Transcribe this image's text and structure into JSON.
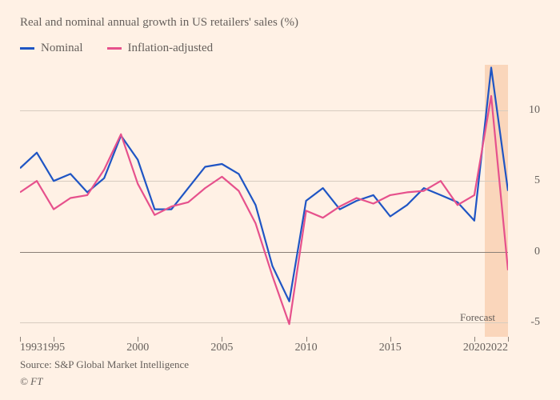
{
  "subtitle": "Real and nominal annual growth in US retailers' sales (%)",
  "source_line": "Source: S&P Global Market Intelligence",
  "copyright_line": "© FT",
  "forecast_label": "Forecast",
  "background_color": "#fff1e5",
  "text_color": "#66605c",
  "grid_color": "#d7ccc0",
  "axis_color": "#8a7f76",
  "subtitle_fontsize": 15,
  "legend_fontsize": 15,
  "axis_fontsize": 14,
  "footer_fontsize": 13,
  "legend": [
    {
      "label": "Nominal",
      "color": "#1f55c4"
    },
    {
      "label": "Inflation-adjusted",
      "color": "#e6518c"
    }
  ],
  "chart": {
    "type": "line",
    "x_years": [
      1993,
      1994,
      1995,
      1996,
      1997,
      1998,
      1999,
      2000,
      2001,
      2002,
      2003,
      2004,
      2005,
      2006,
      2007,
      2008,
      2009,
      2010,
      2011,
      2012,
      2013,
      2014,
      2015,
      2016,
      2017,
      2018,
      2019,
      2020,
      2021,
      2022
    ],
    "x_ticks": [
      1993,
      1995,
      2000,
      2005,
      2010,
      2015,
      2020,
      2022
    ],
    "y_ticks": [
      -5,
      0,
      5,
      10
    ],
    "xlim": [
      1993,
      2022
    ],
    "ylim": [
      -6.0,
      13.2
    ],
    "line_width": 2.2,
    "forecast_start": 2020.6,
    "forecast_end": 2022,
    "forecast_fill": "rgba(247,197,159,0.6)",
    "series": [
      {
        "key": "nominal",
        "color": "#1f55c4",
        "values": [
          5.9,
          7.0,
          5.0,
          5.5,
          4.2,
          5.2,
          8.2,
          6.5,
          3.0,
          3.0,
          4.5,
          6.0,
          6.2,
          5.5,
          3.3,
          -1.0,
          -3.5,
          3.6,
          4.5,
          3.0,
          3.6,
          4.0,
          2.5,
          3.3,
          4.5,
          4.0,
          3.5,
          2.2,
          13.0,
          4.3
        ]
      },
      {
        "key": "inflation_adjusted",
        "color": "#e6518c",
        "values": [
          4.2,
          5.0,
          3.0,
          3.8,
          4.0,
          5.8,
          8.3,
          4.8,
          2.6,
          3.2,
          3.5,
          4.5,
          5.3,
          4.3,
          2.0,
          -1.7,
          -5.1,
          2.9,
          2.4,
          3.2,
          3.8,
          3.4,
          4.0,
          4.2,
          4.3,
          5.0,
          3.3,
          4.0,
          11.0,
          -1.3
        ]
      }
    ]
  }
}
